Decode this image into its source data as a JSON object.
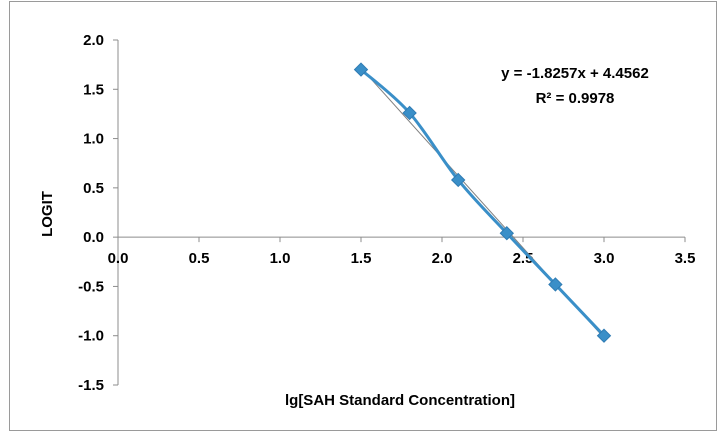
{
  "chart_data": {
    "type": "scatter",
    "title": "",
    "xlabel": "lg[SAH Standard Concentration]",
    "ylabel": "LOGIT",
    "xlim": [
      0,
      3.5
    ],
    "ylim": [
      -1.5,
      2.0
    ],
    "x_ticks": [
      "0.0",
      "0.5",
      "1.0",
      "1.5",
      "2.0",
      "2.5",
      "3.0",
      "3.5"
    ],
    "y_ticks": [
      "2.0",
      "1.5",
      "1.0",
      "0.5",
      "0.0",
      "-0.5",
      "-1.0",
      "-1.5"
    ],
    "x_tick_values": [
      0,
      0.5,
      1.0,
      1.5,
      2.0,
      2.5,
      3.0,
      3.5
    ],
    "y_tick_values": [
      2.0,
      1.5,
      1.0,
      0.5,
      0.0,
      -0.5,
      -1.0,
      -1.5
    ],
    "grid": false,
    "series": [
      {
        "marker": "diamond",
        "color": "#3a8fc8",
        "points": [
          {
            "x": 1.5,
            "y": 1.7
          },
          {
            "x": 1.8,
            "y": 1.26
          },
          {
            "x": 2.1,
            "y": 0.58
          },
          {
            "x": 2.4,
            "y": 0.04
          },
          {
            "x": 2.7,
            "y": -0.48
          },
          {
            "x": 3.0,
            "y": -1.0
          }
        ]
      }
    ],
    "trendline": {
      "type": "linear",
      "slope": -1.8257,
      "intercept": 4.4562,
      "x_range": [
        1.5,
        3.0
      ],
      "color": "#808080"
    },
    "annotations": {
      "equation": "y = -1.8257x + 4.4562",
      "r_squared": "R² = 0.9978"
    }
  }
}
